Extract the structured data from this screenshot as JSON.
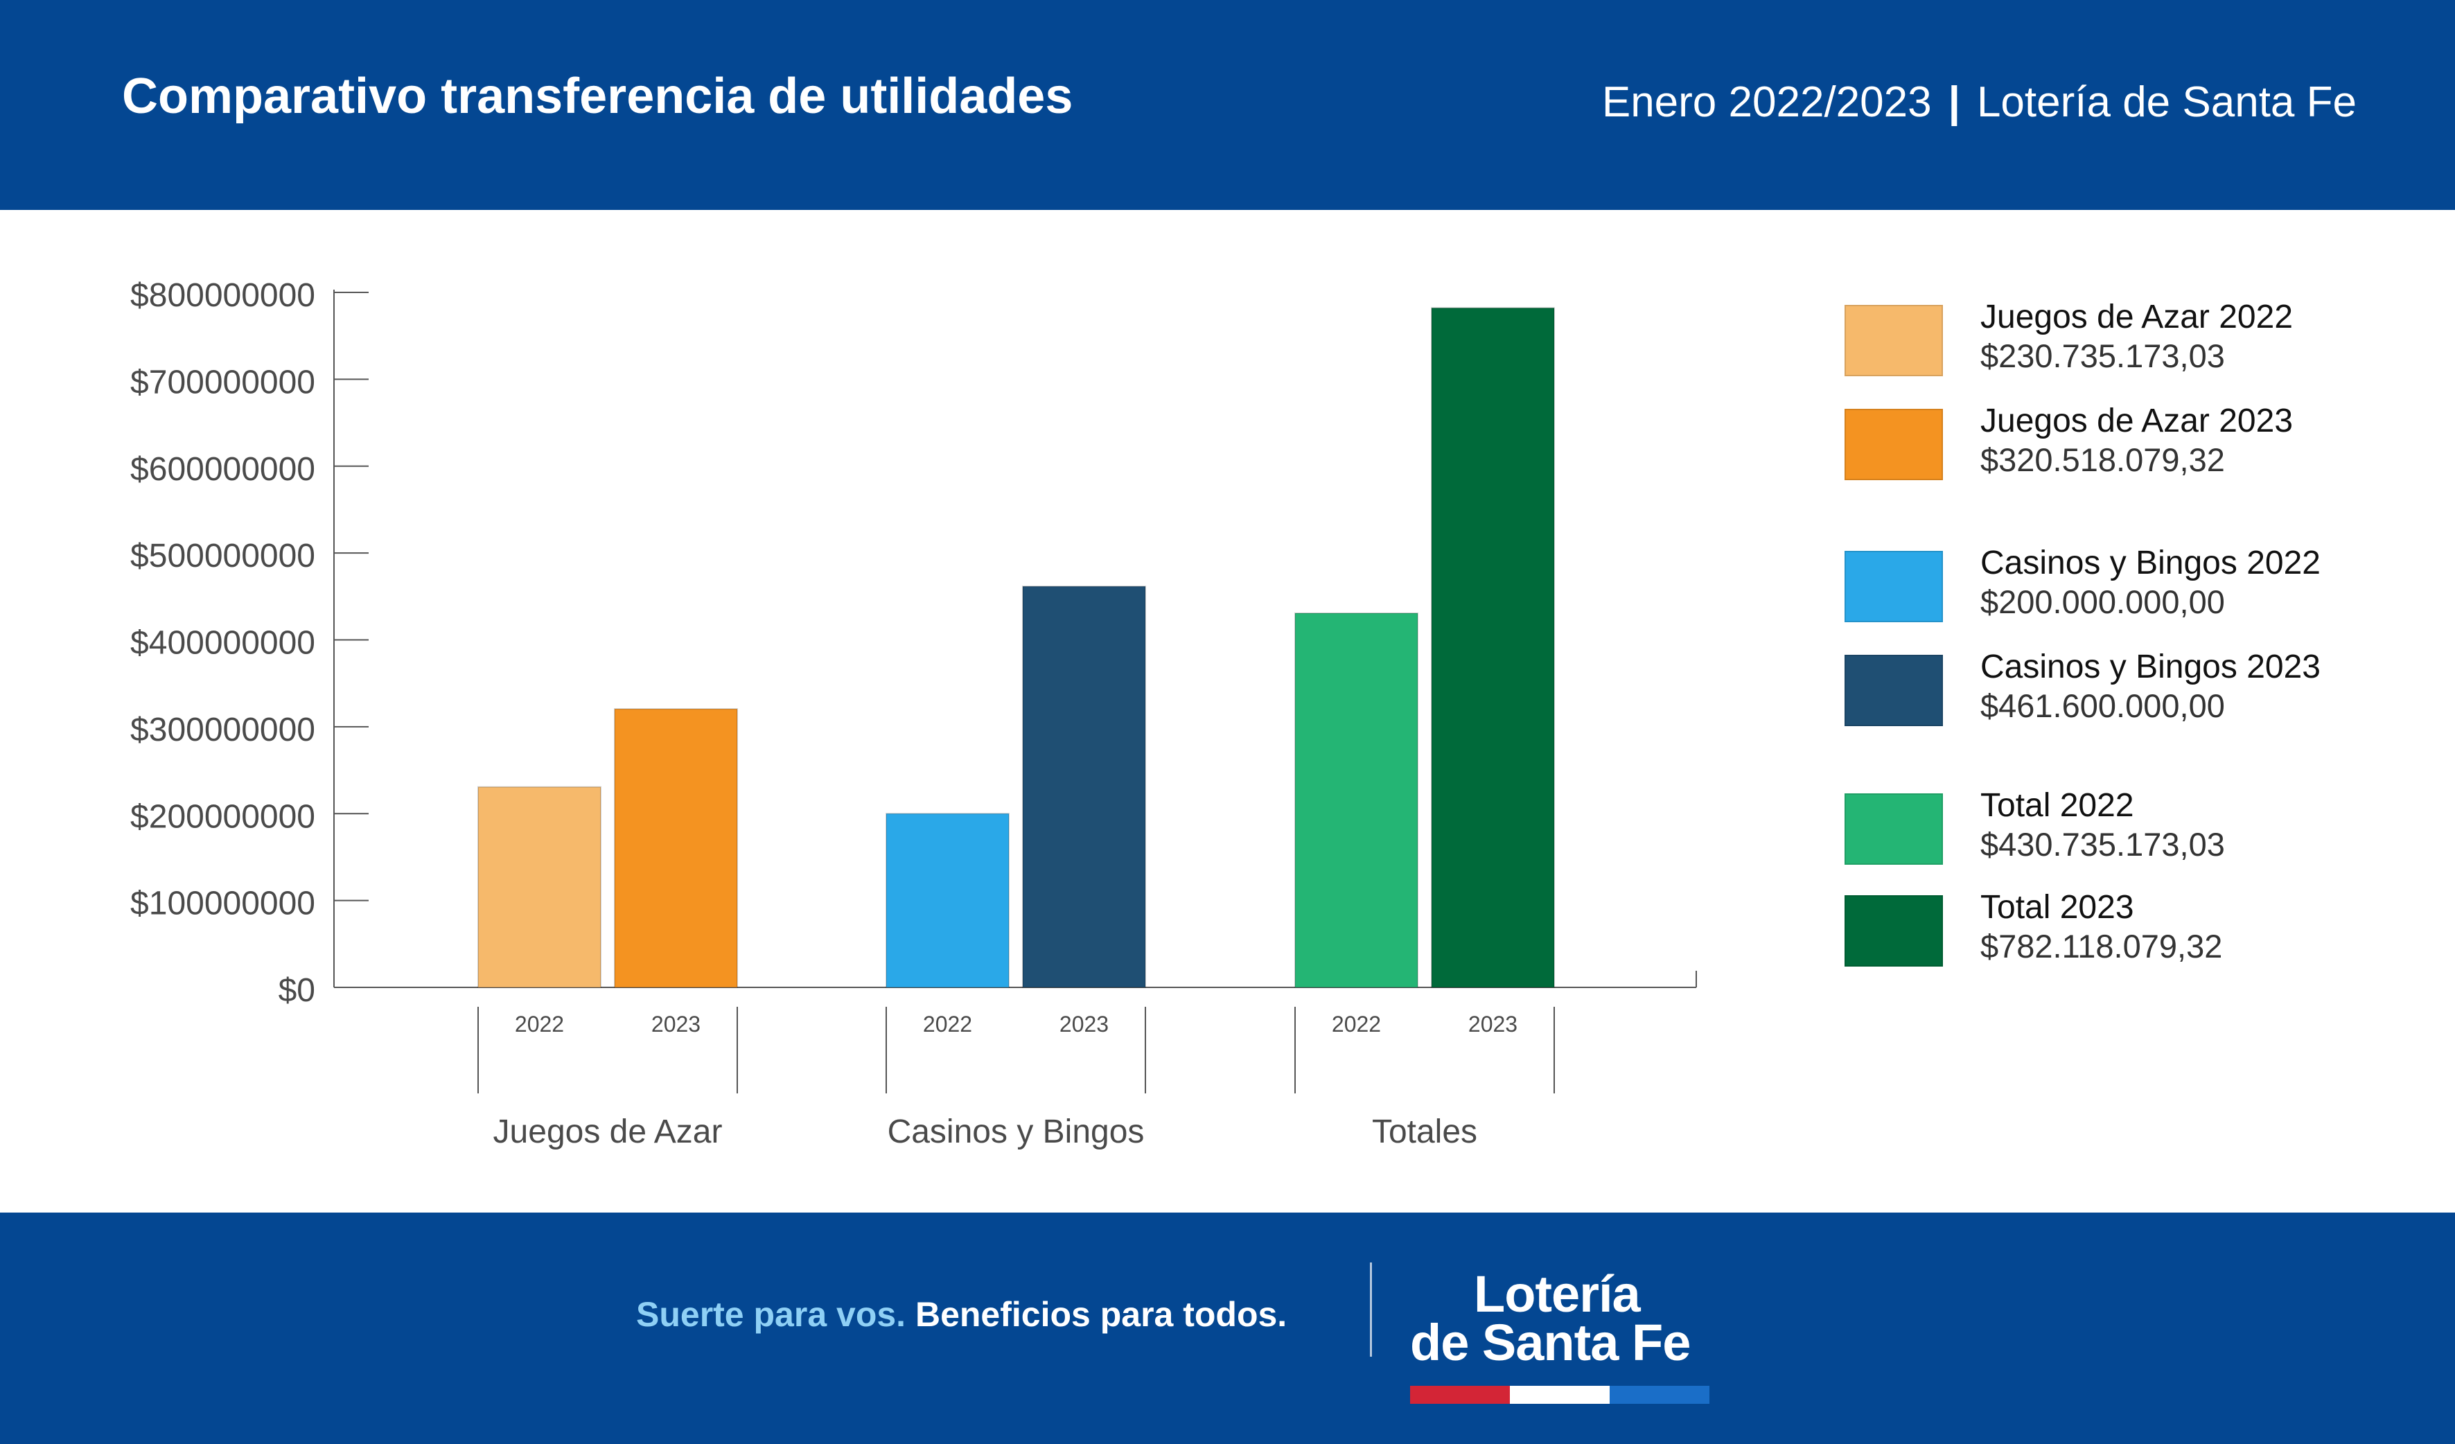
{
  "header": {
    "title": "Comparativo transferencia de utilidades",
    "period": "Enero 2022/2023",
    "separator": "|",
    "organization": "Lotería de Santa Fe"
  },
  "chart_data": {
    "type": "bar",
    "groups": [
      "Juegos de Azar",
      "Casinos y Bingos",
      "Totales"
    ],
    "x_tick_labels": [
      "2022",
      "2023"
    ],
    "y_tick_labels": [
      "$0",
      "$100000000",
      "$200000000",
      "$300000000",
      "$400000000",
      "$500000000",
      "$600000000",
      "$700000000",
      "$800000000"
    ],
    "ylim": [
      0,
      800000000
    ],
    "grid": false,
    "legend_position": "right",
    "series": [
      {
        "name": "Juegos de Azar 2022",
        "group": "Juegos de Azar",
        "year": "2022",
        "value": 230735173.03,
        "label": "$230.735.173,03",
        "color": "#f6b96b"
      },
      {
        "name": "Juegos de Azar 2023",
        "group": "Juegos de Azar",
        "year": "2023",
        "value": 320518079.32,
        "label": "$320.518.079,32",
        "color": "#f49321"
      },
      {
        "name": "Casinos y Bingos 2022",
        "group": "Casinos y Bingos",
        "year": "2022",
        "value": 200000000.0,
        "label": "$200.000.000,00",
        "color": "#2aa8e8"
      },
      {
        "name": "Casinos y Bingos 2023",
        "group": "Casinos y Bingos",
        "year": "2023",
        "value": 461600000.0,
        "label": "$461.600.000,00",
        "color": "#1f4f73"
      },
      {
        "name": "Total 2022",
        "group": "Totales",
        "year": "2022",
        "value": 430735173.03,
        "label": "$430.735.173,03",
        "color": "#24b574"
      },
      {
        "name": "Total 2023",
        "group": "Totales",
        "year": "2023",
        "value": 782118079.32,
        "label": "$782.118.079,32",
        "color": "#006a3a"
      }
    ]
  },
  "footer": {
    "tagline_highlight": "Suerte para vos.",
    "tagline_rest": "Beneficios para todos.",
    "logo_line1": "Lotería",
    "logo_line2": "de Santa Fe",
    "logo_stripe_colors": [
      "#d32536",
      "#ffffff",
      "#1a6ec8"
    ]
  },
  "colors": {
    "brand_blue": "#044792",
    "axis": "#555555",
    "tick_text": "#4a4a4a"
  }
}
